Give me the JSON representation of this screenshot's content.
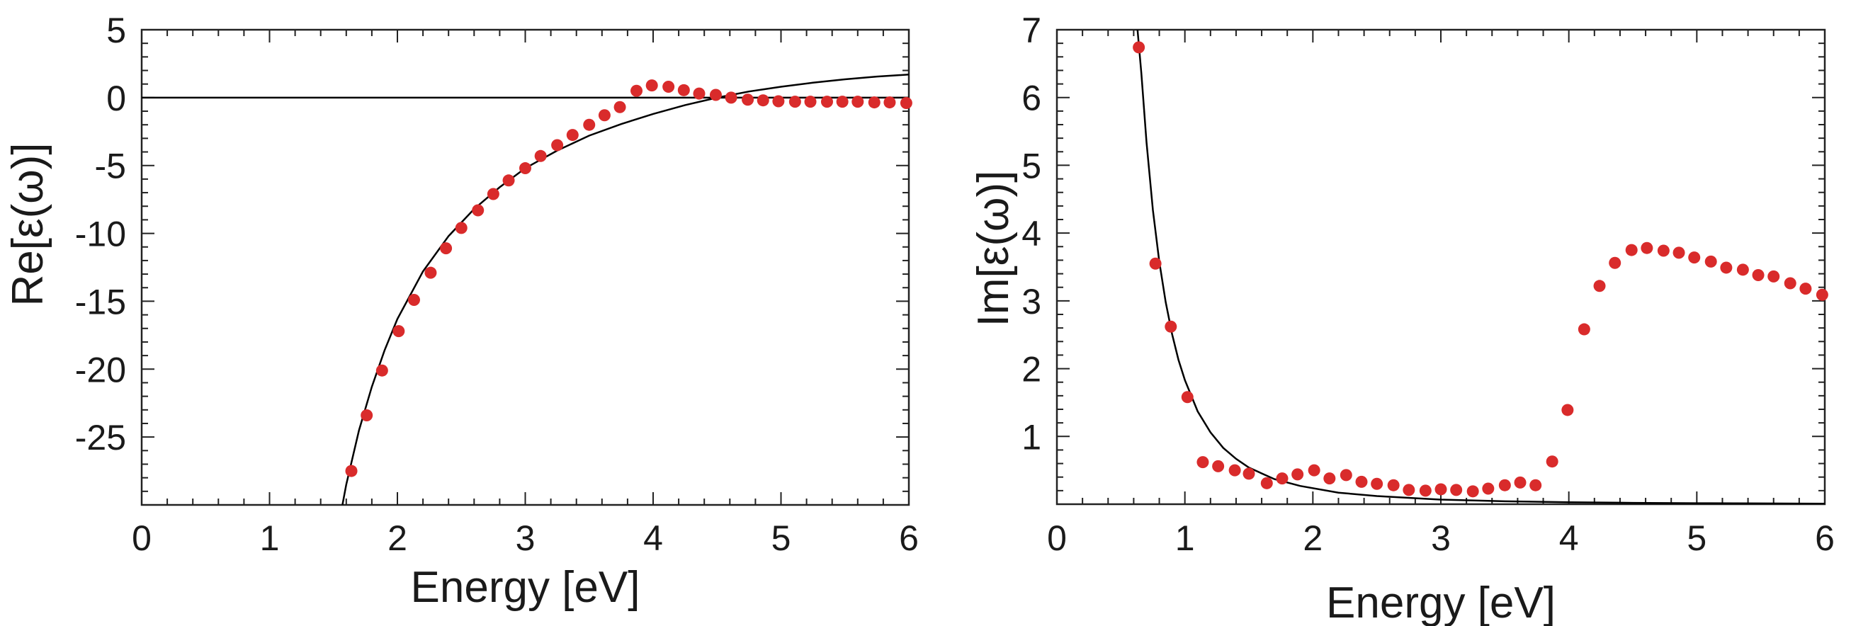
{
  "colors": {
    "points": "#d92b2b",
    "curve": "#000000",
    "axes": "#222222"
  },
  "chart_data": [
    {
      "type": "scatter",
      "xlabel": "Energy [eV]",
      "ylabel": "Re[ε(ω)]",
      "xlim": [
        0,
        6
      ],
      "ylim": [
        -30,
        5
      ],
      "xticks": [
        "0",
        "1",
        "2",
        "3",
        "4",
        "5",
        "6"
      ],
      "yticks": [
        {
          "v": 5,
          "label": "5"
        },
        {
          "v": 0,
          "label": "0"
        },
        {
          "v": -5,
          "label": "-5"
        },
        {
          "v": -10,
          "label": "-10"
        },
        {
          "v": -15,
          "label": "-15"
        },
        {
          "v": -20,
          "label": "-20"
        },
        {
          "v": -25,
          "label": "-25"
        }
      ],
      "reference_line": 0,
      "points": {
        "x": [
          1.64,
          1.76,
          1.88,
          2.01,
          2.13,
          2.26,
          2.38,
          2.5,
          2.63,
          2.75,
          2.87,
          3.0,
          3.12,
          3.25,
          3.37,
          3.5,
          3.62,
          3.74,
          3.87,
          3.99,
          4.12,
          4.24,
          4.36,
          4.49,
          4.61,
          4.74,
          4.86,
          4.98,
          5.11,
          5.23,
          5.36,
          5.48,
          5.6,
          5.73,
          5.85,
          5.98
        ],
        "y": [
          -27.5,
          -23.4,
          -20.1,
          -17.2,
          -14.9,
          -12.9,
          -11.1,
          -9.6,
          -8.3,
          -7.1,
          -6.1,
          -5.2,
          -4.3,
          -3.5,
          -2.75,
          -2.0,
          -1.3,
          -0.7,
          0.5,
          0.9,
          0.8,
          0.55,
          0.3,
          0.2,
          0.0,
          -0.15,
          -0.2,
          -0.27,
          -0.3,
          -0.3,
          -0.3,
          -0.3,
          -0.3,
          -0.35,
          -0.35,
          -0.4
        ]
      },
      "curve": {
        "x": [
          1.57,
          1.6,
          1.7,
          1.8,
          1.9,
          2.0,
          2.2,
          2.4,
          2.6,
          2.8,
          3.0,
          3.25,
          3.5,
          3.75,
          4.0,
          4.25,
          4.5,
          4.75,
          5.0,
          5.25,
          5.5,
          5.75,
          6.0
        ],
        "y": [
          -30,
          -28.5,
          -24.5,
          -21.3,
          -18.6,
          -16.3,
          -12.8,
          -10.2,
          -8.2,
          -6.6,
          -5.2,
          -3.9,
          -2.8,
          -1.95,
          -1.2,
          -0.55,
          0.0,
          0.45,
          0.8,
          1.1,
          1.35,
          1.55,
          1.7
        ]
      }
    },
    {
      "type": "scatter",
      "xlabel": "Energy [eV]",
      "ylabel": "Im[ε(ω)]",
      "xlim": [
        0,
        6
      ],
      "ylim": [
        0,
        7
      ],
      "xticks": [
        "0",
        "1",
        "2",
        "3",
        "4",
        "5",
        "6"
      ],
      "yticks": [
        {
          "v": 1,
          "label": "1"
        },
        {
          "v": 2,
          "label": "2"
        },
        {
          "v": 3,
          "label": "3"
        },
        {
          "v": 4,
          "label": "4"
        },
        {
          "v": 5,
          "label": "5"
        },
        {
          "v": 6,
          "label": "6"
        },
        {
          "v": 7,
          "label": "7"
        }
      ],
      "points": {
        "x": [
          0.64,
          0.77,
          0.89,
          1.02,
          1.14,
          1.26,
          1.39,
          1.5,
          1.64,
          1.76,
          1.88,
          2.01,
          2.13,
          2.26,
          2.38,
          2.5,
          2.63,
          2.75,
          2.88,
          3.0,
          3.12,
          3.25,
          3.37,
          3.5,
          3.62,
          3.74,
          3.87,
          3.99,
          4.12,
          4.24,
          4.36,
          4.49,
          4.61,
          4.74,
          4.86,
          4.98,
          5.11,
          5.23,
          5.36,
          5.48,
          5.6,
          5.73,
          5.85,
          5.98
        ],
        "y": [
          6.74,
          3.55,
          2.62,
          1.58,
          0.62,
          0.56,
          0.5,
          0.45,
          0.31,
          0.38,
          0.44,
          0.5,
          0.38,
          0.43,
          0.33,
          0.3,
          0.28,
          0.21,
          0.2,
          0.22,
          0.21,
          0.19,
          0.23,
          0.28,
          0.32,
          0.28,
          0.63,
          1.39,
          2.58,
          3.22,
          3.56,
          3.75,
          3.78,
          3.74,
          3.71,
          3.64,
          3.58,
          3.49,
          3.46,
          3.38,
          3.36,
          3.26,
          3.18,
          3.09
        ]
      },
      "curve": {
        "x": [
          0.63,
          0.66,
          0.7,
          0.75,
          0.8,
          0.85,
          0.9,
          0.95,
          1.0,
          1.1,
          1.2,
          1.3,
          1.4,
          1.5,
          1.7,
          1.9,
          2.2,
          2.5,
          3.0,
          3.5,
          4.0,
          4.5,
          5.0,
          5.5,
          6.0
        ],
        "y": [
          7.0,
          6.36,
          5.34,
          4.34,
          3.58,
          2.98,
          2.51,
          2.13,
          1.83,
          1.37,
          1.06,
          0.83,
          0.67,
          0.54,
          0.37,
          0.27,
          0.17,
          0.12,
          0.068,
          0.043,
          0.029,
          0.02,
          0.015,
          0.011,
          0.008
        ]
      }
    }
  ]
}
